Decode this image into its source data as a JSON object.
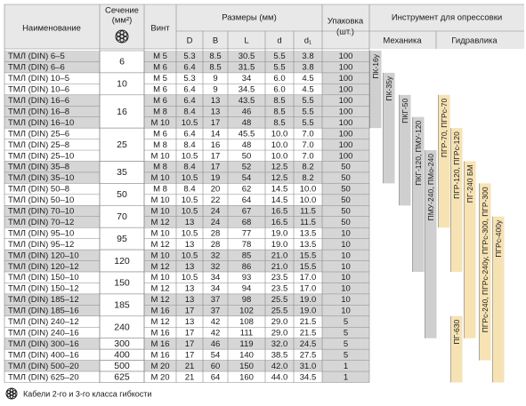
{
  "header": {
    "name": "Наименование",
    "section": "Сечение",
    "section_unit": "(мм²)",
    "screw": "Винт",
    "dims": "Размеры (мм)",
    "dim_cols": [
      "D",
      "B",
      "L",
      "d",
      "d₁"
    ],
    "pack": "Упаковка",
    "pack_unit": "(шт.)",
    "tools": "Инструмент для опрессовки",
    "mechanics": "Механика",
    "hydraulics": "Гидравлика"
  },
  "table": {
    "rows": [
      [
        "ТМЛ (DIN) 6–5",
        "6",
        "М 5",
        "5.3",
        "8.5",
        "30.5",
        "5.5",
        "3.8",
        "100"
      ],
      [
        "ТМЛ (DIN) 6–6",
        null,
        "М 6",
        "6.4",
        "8.5",
        "31.5",
        "5.5",
        "3.8",
        "100"
      ],
      [
        "ТМЛ (DIN) 10–5",
        "10",
        "М 5",
        "5.3",
        "9",
        "34",
        "6.0",
        "4.5",
        "100"
      ],
      [
        "ТМЛ (DIN) 10–6",
        null,
        "М 6",
        "6.4",
        "9",
        "34.5",
        "6.0",
        "4.5",
        "100"
      ],
      [
        "ТМЛ (DIN) 16–6",
        "16",
        "М 6",
        "6.4",
        "13",
        "43.5",
        "8.5",
        "5.5",
        "100"
      ],
      [
        "ТМЛ (DIN) 16–8",
        null,
        "М 8",
        "8.4",
        "13",
        "46",
        "8.5",
        "5.5",
        "100"
      ],
      [
        "ТМЛ (DIN) 16–10",
        null,
        "М 10",
        "10.5",
        "17",
        "48",
        "8.5",
        "5.5",
        "100"
      ],
      [
        "ТМЛ (DIN) 25–6",
        "25",
        "М 6",
        "6.4",
        "14",
        "45.5",
        "10.0",
        "7.0",
        "100"
      ],
      [
        "ТМЛ (DIN) 25–8",
        null,
        "М 8",
        "8.4",
        "16",
        "48",
        "10.0",
        "7.0",
        "100"
      ],
      [
        "ТМЛ (DIN) 25–10",
        null,
        "М 10",
        "10.5",
        "17",
        "50",
        "10.0",
        "7.0",
        "100"
      ],
      [
        "ТМЛ (DIN) 35–8",
        "35",
        "М 8",
        "8.4",
        "17",
        "52",
        "12.5",
        "8.2",
        "50"
      ],
      [
        "ТМЛ (DIN) 35–10",
        null,
        "М 10",
        "10.5",
        "19",
        "54",
        "12.5",
        "8.2",
        "50"
      ],
      [
        "ТМЛ (DIN) 50–8",
        "50",
        "М 8",
        "8.4",
        "20",
        "62",
        "14.5",
        "10.0",
        "50"
      ],
      [
        "ТМЛ (DIN) 50–10",
        null,
        "М 10",
        "10.5",
        "22",
        "64",
        "14.5",
        "10.0",
        "50"
      ],
      [
        "ТМЛ (DIN) 70–10",
        "70",
        "М 10",
        "10.5",
        "24",
        "67",
        "16.5",
        "11.5",
        "50"
      ],
      [
        "ТМЛ (DIN) 70–12",
        null,
        "М 12",
        "13",
        "24",
        "68",
        "16.5",
        "11.5",
        "50"
      ],
      [
        "ТМЛ (DIN) 95–10",
        "95",
        "М 10",
        "10.5",
        "28",
        "77",
        "19.0",
        "13.5",
        "10"
      ],
      [
        "ТМЛ (DIN) 95–12",
        null,
        "М 12",
        "13",
        "28",
        "78",
        "19.0",
        "13.5",
        "10"
      ],
      [
        "ТМЛ (DIN) 120–10",
        "120",
        "М 10",
        "10.5",
        "32",
        "85",
        "21.0",
        "15.5",
        "10"
      ],
      [
        "ТМЛ (DIN) 120–12",
        null,
        "М 12",
        "13",
        "32",
        "86",
        "21.0",
        "15.5",
        "10"
      ],
      [
        "ТМЛ (DIN) 150–10",
        "150",
        "М 10",
        "10.5",
        "34",
        "93",
        "23.5",
        "17.0",
        "10"
      ],
      [
        "ТМЛ (DIN) 150–12",
        null,
        "М 12",
        "13",
        "34",
        "94",
        "23.5",
        "17.0",
        "10"
      ],
      [
        "ТМЛ (DIN) 185–12",
        "185",
        "М 12",
        "13",
        "37",
        "98",
        "25.5",
        "19.0",
        "10"
      ],
      [
        "ТМЛ (DIN) 185–16",
        null,
        "М 16",
        "17",
        "37",
        "102",
        "25.5",
        "19.0",
        "10"
      ],
      [
        "ТМЛ (DIN) 240–12",
        "240",
        "М 12",
        "13",
        "42",
        "108",
        "29.0",
        "21.5",
        "5"
      ],
      [
        "ТМЛ (DIN) 240–16",
        null,
        "М 16",
        "17",
        "42",
        "111",
        "29.0",
        "21.5",
        "5"
      ],
      [
        "ТМЛ (DIN) 300–16",
        "300",
        "М 16",
        "17",
        "46",
        "119",
        "32.0",
        "24.5",
        "5"
      ],
      [
        "ТМЛ (DIN) 400–16",
        "400",
        "М 16",
        "17",
        "54",
        "140",
        "38.5",
        "27.5",
        "5"
      ],
      [
        "ТМЛ (DIN) 500–20",
        "500",
        "М 20",
        "21",
        "60",
        "150",
        "42.0",
        "31.0",
        "1"
      ],
      [
        "ТМЛ (DIN) 625–20",
        "625",
        "М 20",
        "21",
        "64",
        "160",
        "44.0",
        "34.5",
        "1"
      ]
    ]
  },
  "tools": [
    {
      "label": "ПК-16у",
      "group": "mechanics"
    },
    {
      "label": "ПК-35у",
      "group": "mechanics"
    },
    {
      "label": "ПКГ-50",
      "group": "mechanics"
    },
    {
      "label": "ПКГ-120, ПМУ-120",
      "group": "mechanics"
    },
    {
      "label": "ПМУ-240, ПМо-240",
      "group": "mechanics"
    },
    {
      "label": "ПГР-70, ПГРс-70",
      "group": "hydraulics"
    },
    {
      "label": "ПГР-120, ПГРс-120",
      "group": "hydraulics"
    },
    {
      "label": "ПГ-240 БМ",
      "group": "hydraulics"
    },
    {
      "label": "ПГ-630",
      "group": "hydraulics"
    },
    {
      "label": "ПГРс-240, ПГРс-240у, ПГРс-300, ПГР-300",
      "group": "hydraulics"
    },
    {
      "label": "ПГРс-400у",
      "group": "hydraulics"
    }
  ],
  "footnote": "Кабели 2-го и 3-го класса гибкости"
}
